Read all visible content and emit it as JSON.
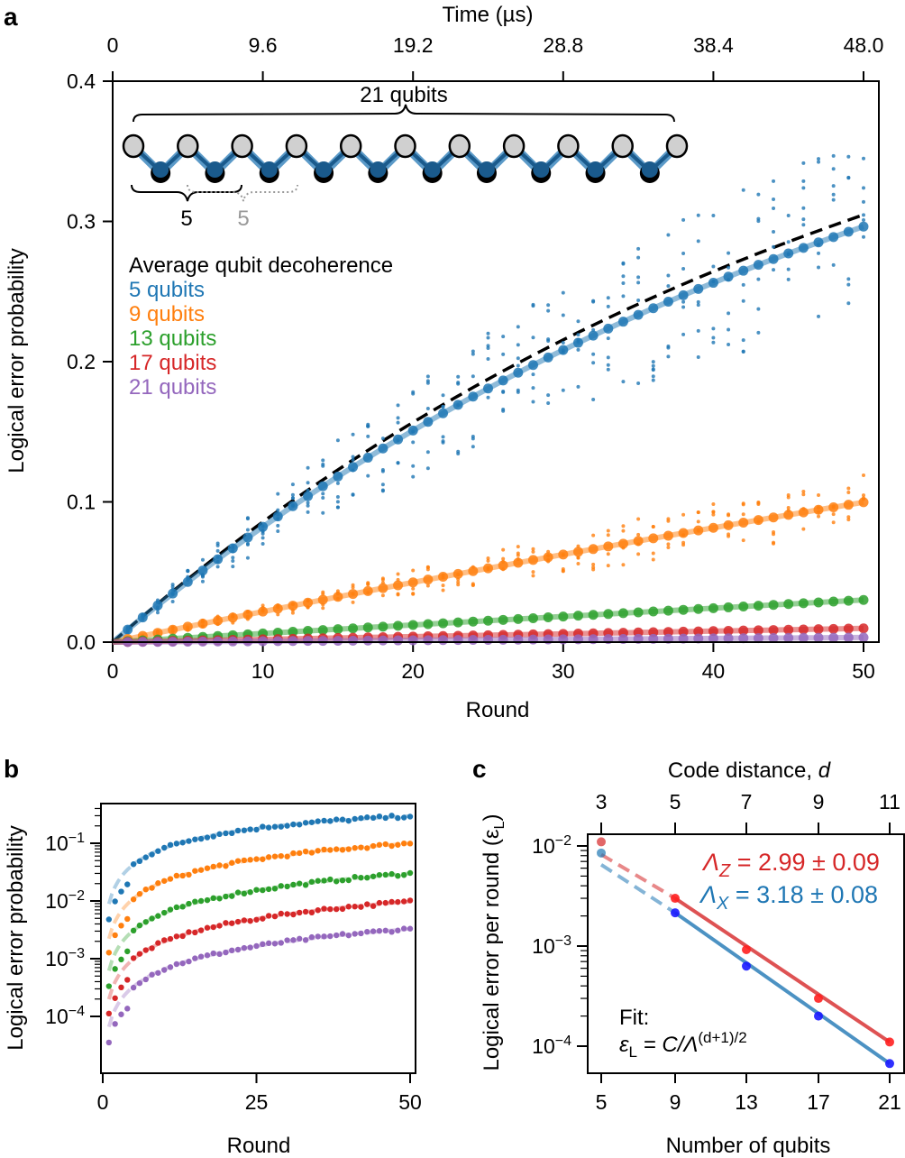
{
  "panels": {
    "a": {
      "letter": "a"
    },
    "b": {
      "letter": "b"
    },
    "c": {
      "letter": "c"
    }
  },
  "chart_data": [
    {
      "id": "a",
      "type": "scatter",
      "title": "",
      "xlabel": "Round",
      "ylabel": "Logical error probability",
      "top_xlabel": "Time (µs)",
      "xlim": [
        0,
        51
      ],
      "ylim": [
        0.0,
        0.4
      ],
      "xticks": [
        0,
        10,
        20,
        30,
        40,
        50
      ],
      "xtick_labels": [
        "0",
        "10",
        "20",
        "30",
        "40",
        "50"
      ],
      "yticks": [
        0.0,
        0.1,
        0.2,
        0.3,
        0.4
      ],
      "ytick_labels": [
        "0.0",
        "0.1",
        "0.2",
        "0.3",
        "0.4"
      ],
      "top_xticks": [
        0,
        10,
        20,
        30,
        40,
        50
      ],
      "top_xtick_labels": [
        "0",
        "9.6",
        "19.2",
        "28.8",
        "38.4",
        "48.0"
      ],
      "legend_placement": "upper-left",
      "legend": [
        "Average qubit decoherence",
        "5 qubits",
        "9 qubits",
        "13 qubits",
        "17 qubits",
        "21 qubits"
      ],
      "decoherence": {
        "name": "Average qubit decoherence",
        "style": "dashed",
        "color": "#000000",
        "p_inf": 0.5,
        "rate_per_round": 0.0188,
        "x_end": 50
      },
      "series": [
        {
          "name": "5 qubits",
          "color": "#1f77b4",
          "eps": 0.0089
        },
        {
          "name": "9 qubits",
          "color": "#ff7f0e",
          "eps": 0.00222
        },
        {
          "name": "13 qubits",
          "color": "#2ca02c",
          "eps": 0.00062
        },
        {
          "name": "17 qubits",
          "color": "#d62728",
          "eps": 0.000198
        },
        {
          "name": "21 qubits",
          "color": "#9467bd",
          "eps": 6.6e-05
        }
      ],
      "rounds": [
        1,
        2,
        3,
        4,
        5,
        6,
        7,
        8,
        9,
        10,
        11,
        12,
        13,
        14,
        15,
        16,
        17,
        18,
        19,
        20,
        21,
        22,
        23,
        24,
        25,
        26,
        27,
        28,
        29,
        30,
        31,
        32,
        33,
        34,
        35,
        36,
        37,
        38,
        39,
        40,
        41,
        42,
        43,
        44,
        45,
        46,
        47,
        48,
        49,
        50
      ],
      "inset": {
        "label_total": "21 qubits",
        "label_sub": "5",
        "label_sub_shifted": "5",
        "data_qubits": 11,
        "measure_qubits": 10
      }
    },
    {
      "id": "b",
      "type": "scatter",
      "xlabel": "Round",
      "ylabel": "Logical error probability",
      "xlim": [
        0,
        50
      ],
      "yscale": "log",
      "ylim": [
        1e-05,
        0.5
      ],
      "xticks": [
        0,
        25,
        50
      ],
      "xtick_labels": [
        "0",
        "25",
        "50"
      ],
      "yticks": [
        0.1,
        0.01,
        0.001,
        0.0001
      ],
      "ytick_labels": [
        "10",
        "10",
        "10",
        "10"
      ],
      "ytick_exps": [
        "−1",
        "−2",
        "−3",
        "−4"
      ],
      "series_ref": "same as panel a (5, 9, 13, 17, 21 qubits)"
    },
    {
      "id": "c",
      "type": "line",
      "xlabel": "Number of qubits",
      "ylabel": "Logical error per round (ε",
      "ylabel_sub": "L",
      "ylabel_end": ")",
      "top_xlabel": "Code distance, ",
      "top_xlabel_italic": "d",
      "yscale": "log",
      "ylim": [
        5e-05,
        0.0125
      ],
      "x": [
        5,
        9,
        13,
        17,
        21
      ],
      "xtick_labels": [
        "5",
        "9",
        "13",
        "17",
        "21"
      ],
      "top_xtick_labels": [
        "3",
        "5",
        "7",
        "9",
        "11"
      ],
      "yticks": [
        0.01,
        0.001,
        0.0001
      ],
      "ytick_labels": [
        "10",
        "10",
        "10"
      ],
      "ytick_exps": [
        "−2",
        "−3",
        "−4"
      ],
      "series": [
        {
          "name": "Z",
          "color": "#d62728",
          "point_color": "#ff2020",
          "values": [
            0.011,
            0.003,
            0.00092,
            0.0003,
            0.00011
          ],
          "fit_start": 0.0082
        },
        {
          "name": "X",
          "color": "#1f77b4",
          "point_color": "#1a1aff",
          "values": [
            0.0085,
            0.00215,
            0.00063,
            0.0002,
            6.7e-05
          ],
          "fit_start": 0.0065
        }
      ],
      "annotations": {
        "lambda_z_sym": "Λ",
        "lambda_z_sub": "Z",
        "lambda_z_val": " = 2.99 ± 0.09",
        "lambda_x_sym": "Λ",
        "lambda_x_sub": "X",
        "lambda_x_val": " = 3.18 ± 0.08",
        "fit_title": "Fit:",
        "fit_lhs": "ε",
        "fit_lhs_sub": "L",
        "fit_mid": " = C/Λ",
        "fit_sup": "(d+1)/2"
      }
    }
  ]
}
